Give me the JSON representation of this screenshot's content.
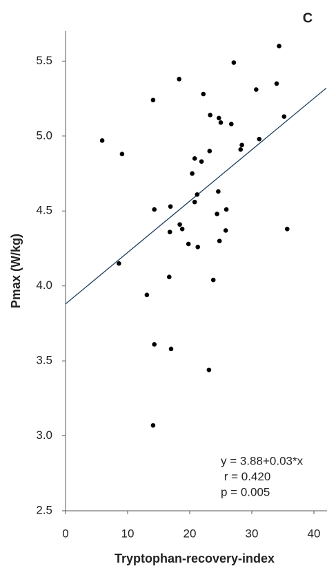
{
  "chart_data": {
    "type": "scatter",
    "panel_label": "C",
    "x_label": "Tryptophan-recovery-index",
    "y_label": "Pmax (W/kg)",
    "xlim": [
      0,
      42
    ],
    "ylim": [
      2.5,
      5.7
    ],
    "xticks": [
      0,
      10,
      20,
      30,
      40
    ],
    "yticks": [
      2.5,
      {
        "value": 3,
        "label": "3.0"
      },
      3.5,
      {
        "value": 4,
        "label": "4.0"
      },
      4.5,
      {
        "value": 5,
        "label": "5.0"
      },
      5.5
    ],
    "color": "#000000",
    "x": [
      5.9,
      9.1,
      8.6,
      13.1,
      14.1,
      14.3,
      14.3,
      14.1,
      16.9,
      16.8,
      16.7,
      17.0,
      18.3,
      18.4,
      18.8,
      19.8,
      20.4,
      20.8,
      20.8,
      21.2,
      21.3,
      21.9,
      22.2,
      23.1,
      23.2,
      23.3,
      23.8,
      24.4,
      24.6,
      24.7,
      25.0,
      24.8,
      25.9,
      25.8,
      26.7,
      27.1,
      28.2,
      28.4,
      30.7,
      31.2,
      34.0,
      34.4,
      35.2,
      35.7
    ],
    "values": [
      4.97,
      4.88,
      4.15,
      3.94,
      5.24,
      4.51,
      3.61,
      3.07,
      4.53,
      4.36,
      4.06,
      3.58,
      5.38,
      4.41,
      4.38,
      4.28,
      4.75,
      4.85,
      4.56,
      4.61,
      4.26,
      4.83,
      5.28,
      3.44,
      4.9,
      5.14,
      4.04,
      4.48,
      4.63,
      5.12,
      5.09,
      4.3,
      4.51,
      4.37,
      5.08,
      5.49,
      4.91,
      4.94,
      5.31,
      4.98,
      5.35,
      5.6,
      5.13,
      4.38
    ],
    "fit_line": {
      "x": [
        0,
        42
      ],
      "y": [
        3.88,
        5.32
      ],
      "color": "#1f3f5f"
    },
    "annotations": [
      "y = 3.88+0.03*x",
      " r = 0.420",
      "p = 0.005"
    ]
  }
}
